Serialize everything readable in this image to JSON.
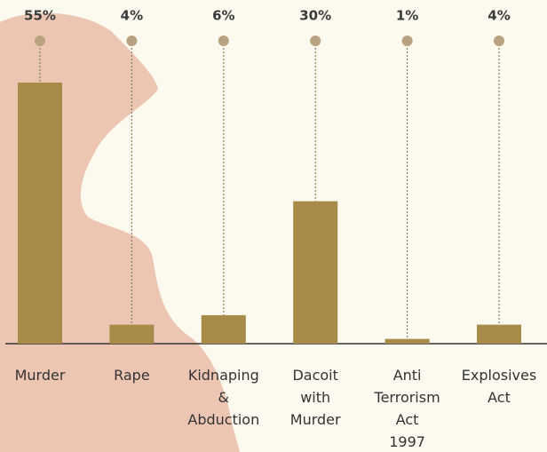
{
  "chart_data": {
    "type": "bar",
    "categories": [
      "Murder",
      "Rape",
      "Kidnaping\n&\nAbduction",
      "Dacoit\nwith\nMurder",
      "Anti\nTerrorism\nAct\n1997",
      "Explosives\nAct"
    ],
    "values": [
      55,
      4,
      6,
      30,
      1,
      4
    ],
    "value_labels": [
      "55%",
      "4%",
      "6%",
      "30%",
      "1%",
      "4%"
    ],
    "color": "#a88b48"
  }
}
